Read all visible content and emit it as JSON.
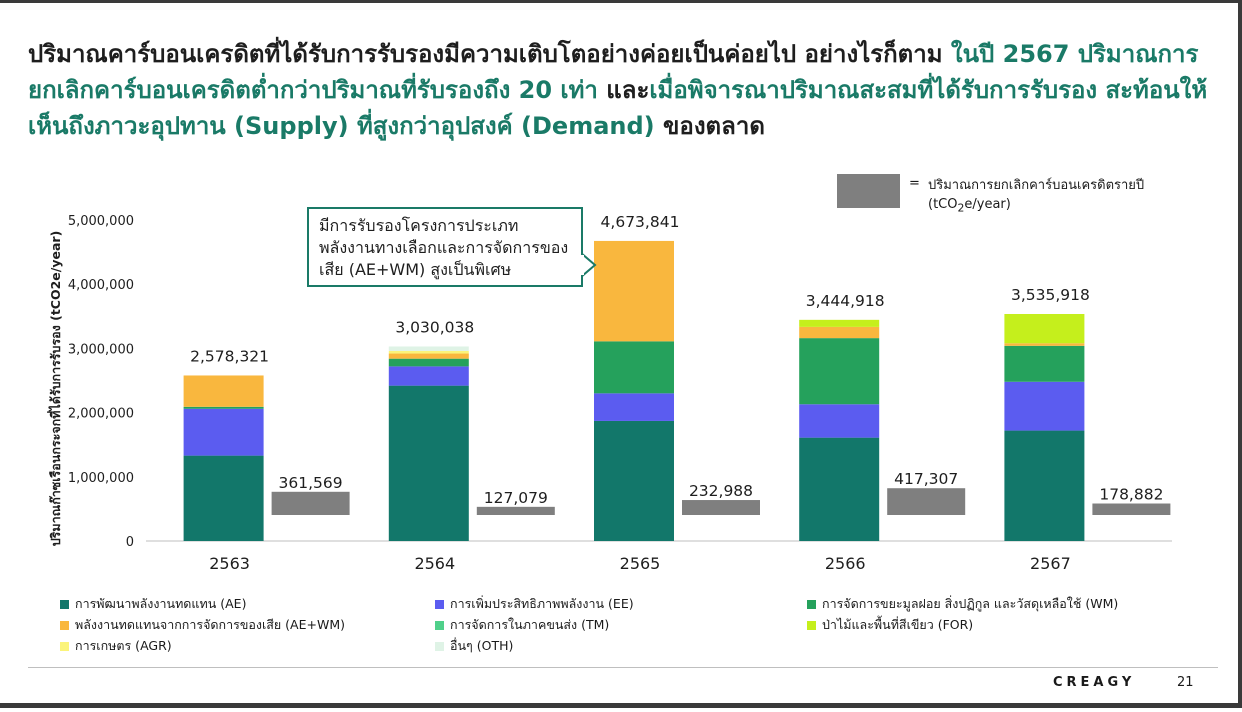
{
  "headline": {
    "part1": "ปริมาณคาร์บอนเครดิตที่ได้รับการรับรองมีความเติบโตอย่างค่อยเป็นค่อยไป อย่างไรก็ตาม ",
    "part2": "ในปี 2567 ปริมาณการยกเลิกคาร์บอนเครดิตต่ำกว่าปริมาณที่รับรองถึง 20 เท่า",
    "part3": " และ",
    "part4": "เมื่อพิจารณาปริมาณสะสมที่ได้รับการรับรอง สะท้อนให้เห็นถึงภาวะอุปทาน (Supply) ที่สูงกว่าอุปสงค์ (Demand)",
    "part5": " ของตลาด"
  },
  "callout": "มีการรับรองโครงการประเภทพลังงานทางเลือกและการจัดการของเสีย (AE+WM) สูงเป็นพิเศษ",
  "legend_box": {
    "eq": "=",
    "text_main": "ปริมาณการยกเลิกคาร์บอนเครดิตรายปี",
    "text_unit_pre": "(tCO",
    "text_unit_sub": "2",
    "text_unit_post": "e/year)"
  },
  "chart_data": {
    "type": "bar",
    "categories": [
      "2563",
      "2564",
      "2565",
      "2566",
      "2567"
    ],
    "ylabel": "ปริมาณก๊าซเรือนกระจกที่ได้รับการรับรอง (tCO2e/year)",
    "ylim": [
      0,
      5000000
    ],
    "yticks": [
      0,
      1000000,
      2000000,
      3000000,
      4000000,
      5000000
    ],
    "ytick_labels": [
      "0",
      "1,000,000",
      "2,000,000",
      "3,000,000",
      "4,000,000",
      "5,000,000"
    ],
    "stacked_series": [
      {
        "name": "การพัฒนาพลังงานทดแทน (AE)",
        "color": "#12776a",
        "values": [
          1330000,
          2420000,
          1870000,
          1610000,
          1720000
        ]
      },
      {
        "name": "การเพิ่มประสิทธิภาพพลังงาน (EE)",
        "color": "#5b5cf0",
        "values": [
          730000,
          300000,
          430000,
          520000,
          760000
        ]
      },
      {
        "name": "การจัดการขยะมูลฝอย สิ่งปฏิกูล และวัสดุเหลือใช้ (WM)",
        "color": "#25a15c",
        "values": [
          30000,
          120000,
          810000,
          1030000,
          560000
        ]
      },
      {
        "name": "พลังงานทดแทนจากการจัดการของเสีย (AE+WM)",
        "color": "#f9b73e",
        "values": [
          488321,
          80000,
          1563841,
          175000,
          40000
        ]
      },
      {
        "name": "การจัดการในภาคขนส่ง (TM)",
        "color": "#4fd08a",
        "values": [
          0,
          0,
          0,
          0,
          0
        ]
      },
      {
        "name": "ป่าไม้และพื้นที่สีเขียว (FOR)",
        "color": "#c5ef1c",
        "values": [
          0,
          0,
          0,
          109918,
          455918
        ]
      },
      {
        "name": "การเกษตร (AGR)",
        "color": "#fbf47a",
        "values": [
          0,
          40000,
          0,
          0,
          0
        ]
      },
      {
        "name": "อื่นๆ (OTH)",
        "color": "#dff3e6",
        "values": [
          0,
          70038,
          0,
          0,
          0
        ]
      }
    ],
    "totals": [
      2578321,
      3030038,
      4673841,
      3444918,
      3535918
    ],
    "total_labels": [
      "2,578,321",
      "3,030,038",
      "4,673,841",
      "3,444,918",
      "3,535,918"
    ],
    "retirement": {
      "name": "ปริมาณการยกเลิกคาร์บอนเครดิตรายปี (tCO2e/year)",
      "color": "#7f7f7f",
      "values": [
        361569,
        127079,
        232988,
        417307,
        178882
      ],
      "labels": [
        "361,569",
        "127,079",
        "232,988",
        "417,307",
        "178,882"
      ]
    }
  },
  "footer": {
    "brand": "CREAGY",
    "page": "21"
  }
}
